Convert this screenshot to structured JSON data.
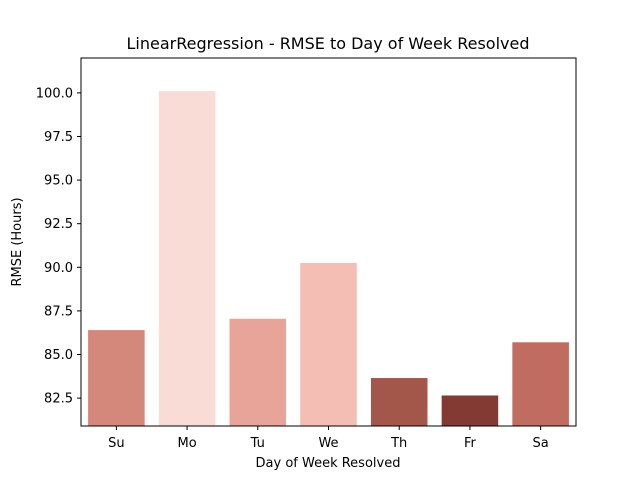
{
  "chart_data": {
    "type": "bar",
    "title": "LinearRegression - RMSE to Day of Week Resolved",
    "xlabel": "Day of Week Resolved",
    "ylabel": "RMSE (Hours)",
    "categories": [
      "Su",
      "Mo",
      "Tu",
      "We",
      "Th",
      "Fr",
      "Sa"
    ],
    "values": [
      86.4,
      100.1,
      87.05,
      90.25,
      83.65,
      82.65,
      85.7
    ],
    "colors": [
      "#d4887b",
      "#fadcd7",
      "#e8a498",
      "#f4beb4",
      "#a3574a",
      "#833a33",
      "#c06c60"
    ],
    "ylim": [
      80.9,
      102.0
    ],
    "yticks": [
      "82.5",
      "85.0",
      "87.5",
      "90.0",
      "92.5",
      "95.0",
      "97.5",
      "100.0"
    ],
    "grid": false,
    "legend": "none"
  }
}
